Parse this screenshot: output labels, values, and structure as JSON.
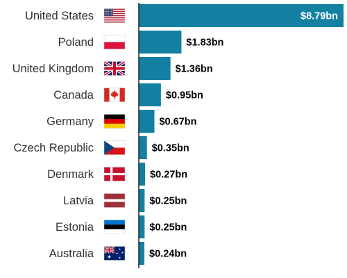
{
  "chart_data": {
    "type": "bar",
    "orientation": "horizontal",
    "categories": [
      "United States",
      "Poland",
      "United Kingdom",
      "Canada",
      "Germany",
      "Czech Republic",
      "Denmark",
      "Latvia",
      "Estonia",
      "Australia"
    ],
    "values": [
      8.79,
      1.83,
      1.36,
      0.95,
      0.67,
      0.35,
      0.27,
      0.25,
      0.25,
      0.24
    ],
    "value_labels": [
      "$8.79bn",
      "$1.83bn",
      "$1.36bn",
      "$0.95bn",
      "$0.67bn",
      "$0.35bn",
      "$0.27bn",
      "$0.25bn",
      "$0.25bn",
      "$0.24bn"
    ],
    "flag_icons": [
      "flag-us-icon",
      "flag-pl-icon",
      "flag-gb-icon",
      "flag-ca-icon",
      "flag-de-icon",
      "flag-cz-icon",
      "flag-dk-icon",
      "flag-lv-icon",
      "flag-ee-icon",
      "flag-au-icon"
    ],
    "xlim": [
      0,
      8.79
    ],
    "grid": false,
    "legend": "none",
    "title": "",
    "xlabel": "",
    "ylabel": "",
    "bar_color": "#1380a1",
    "value_label_color_inside": "#ffffff",
    "value_label_color_outside": "#000000",
    "label_color": "#333333"
  }
}
